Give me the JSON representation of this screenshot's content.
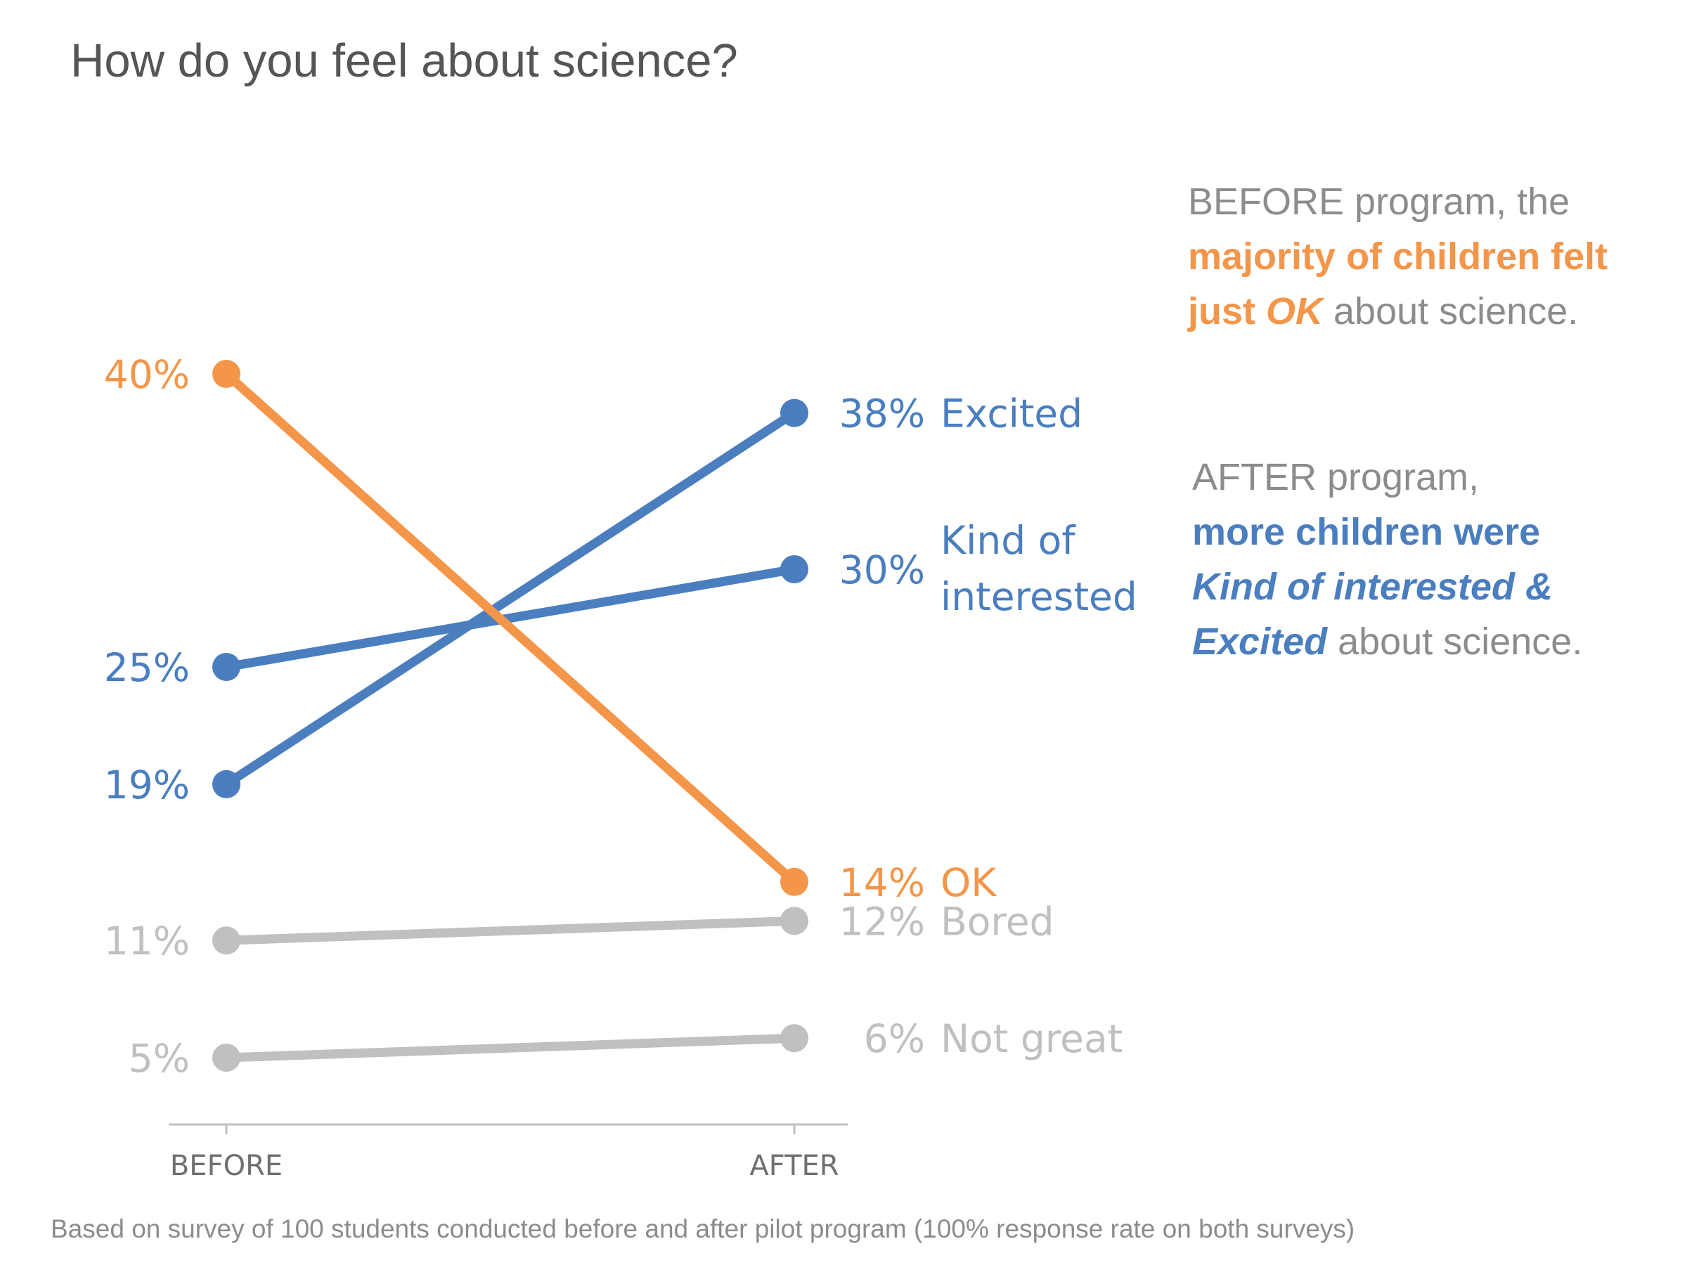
{
  "chart_data": {
    "type": "line",
    "title": "How do you feel about science?",
    "x": [
      "BEFORE",
      "AFTER"
    ],
    "ylim": [
      0,
      45
    ],
    "series": [
      {
        "name": "Excited",
        "values": [
          19,
          38
        ],
        "labels": [
          "19%",
          "38%"
        ],
        "color": "#4a7ebf"
      },
      {
        "name": "Kind of interested",
        "values": [
          25,
          30
        ],
        "labels": [
          "25%",
          "30%"
        ],
        "color": "#4a7ebf"
      },
      {
        "name": "OK",
        "values": [
          40,
          14
        ],
        "labels": [
          "40%",
          "14%"
        ],
        "color": "#f4964a"
      },
      {
        "name": "Bored",
        "values": [
          11,
          12
        ],
        "labels": [
          "11%",
          "12%"
        ],
        "color": "#c0c0c0"
      },
      {
        "name": "Not great",
        "values": [
          5,
          6
        ],
        "labels": [
          "5%",
          "6%"
        ],
        "color": "#c0c0c0"
      }
    ]
  },
  "annotations": {
    "before": {
      "line1": "BEFORE program, the",
      "emph1": "majority of children felt",
      "emph2": "just ",
      "emph3": "OK",
      "tail": " about science."
    },
    "after": {
      "line1": "AFTER program,",
      "emph1": "more children were",
      "emph2": "Kind of interested &",
      "emph3": "Excited",
      "tail": " about science."
    }
  },
  "footnote": "Based on survey of 100 students conducted before and after pilot program (100% response rate on both surveys)"
}
